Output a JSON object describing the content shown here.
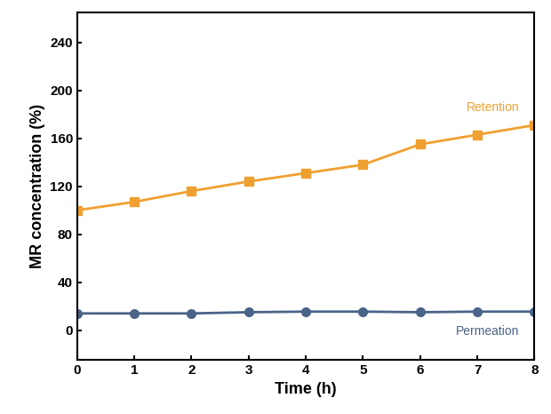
{
  "chart_data": {
    "type": "line",
    "x_label": "Time (h)",
    "y_label": "MR concentration (%)",
    "x": [
      0,
      1,
      2,
      3,
      4,
      5,
      6,
      7,
      8
    ],
    "series": [
      {
        "name": "Retention",
        "color": "#f0a030",
        "marker": "square",
        "line_style": "solid",
        "values": [
          100,
          107,
          116,
          124,
          131,
          138,
          155,
          163,
          171
        ]
      },
      {
        "name": "Permeation",
        "color": "#4a6489",
        "marker": "circle",
        "line_style": "solid",
        "values": [
          14,
          14,
          14,
          15,
          15.5,
          15.5,
          15,
          15.5,
          15.5
        ]
      }
    ],
    "xlim": [
      0,
      8
    ],
    "xticks": [
      0,
      1,
      2,
      3,
      4,
      5,
      6,
      7,
      8
    ],
    "ylim": [
      -25,
      265
    ],
    "yticks": [
      0,
      40,
      80,
      120,
      160,
      200,
      240
    ],
    "grid": false
  }
}
